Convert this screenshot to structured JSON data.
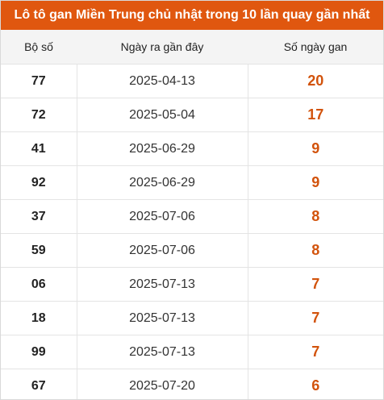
{
  "title": "Lô tô gan Miền Trung chủ nhật trong 10 lần quay gần nhất",
  "columns": [
    "Bộ số",
    "Ngày ra gần đây",
    "Số ngày gan"
  ],
  "rows": [
    {
      "number": "77",
      "last_date": "2025-04-13",
      "days": "20"
    },
    {
      "number": "72",
      "last_date": "2025-05-04",
      "days": "17"
    },
    {
      "number": "41",
      "last_date": "2025-06-29",
      "days": "9"
    },
    {
      "number": "92",
      "last_date": "2025-06-29",
      "days": "9"
    },
    {
      "number": "37",
      "last_date": "2025-07-06",
      "days": "8"
    },
    {
      "number": "59",
      "last_date": "2025-07-06",
      "days": "8"
    },
    {
      "number": "06",
      "last_date": "2025-07-13",
      "days": "7"
    },
    {
      "number": "18",
      "last_date": "2025-07-13",
      "days": "7"
    },
    {
      "number": "99",
      "last_date": "2025-07-13",
      "days": "7"
    },
    {
      "number": "67",
      "last_date": "2025-07-20",
      "days": "6"
    }
  ],
  "colors": {
    "header_bg": "#e0570f",
    "accent_value": "#d2530c"
  }
}
